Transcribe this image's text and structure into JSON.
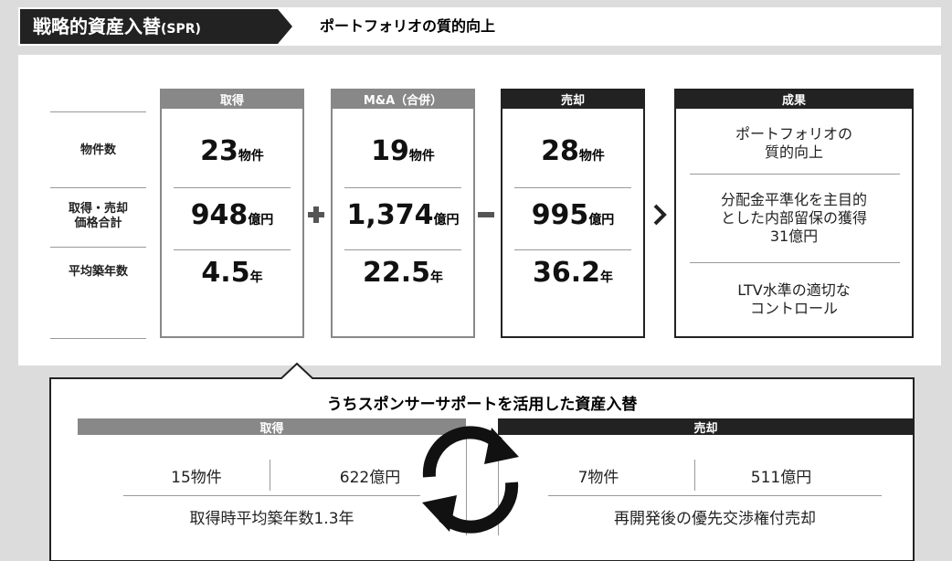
{
  "header": {
    "tag": "戦略的資産入替",
    "tag_sub": "(SPR)",
    "title": "ポートフォリオの質的向上"
  },
  "row_labels": [
    [
      "物件数"
    ],
    [
      "取得・売却",
      "価格合計"
    ],
    [
      "平均築年数"
    ]
  ],
  "columns": [
    {
      "title": "取得",
      "cells": [
        {
          "value": "23",
          "unit": "物件"
        },
        {
          "value": "948",
          "unit": "億円"
        },
        {
          "value": "4.5",
          "unit": "年"
        }
      ]
    },
    {
      "title": "M&A（合併）",
      "cells": [
        {
          "value": "19",
          "unit": "物件"
        },
        {
          "value": "1,374",
          "unit": "億円"
        },
        {
          "value": "22.5",
          "unit": "年"
        }
      ]
    },
    {
      "title": "売却",
      "cells": [
        {
          "value": "28",
          "unit": "物件"
        },
        {
          "value": "995",
          "unit": "億円"
        },
        {
          "value": "36.2",
          "unit": "年"
        }
      ]
    }
  ],
  "results": {
    "title": "成果",
    "items": [
      [
        "ポートフォリオの",
        "質的向上"
      ],
      [
        "分配金平準化を主目的",
        "とした内部留保の獲得",
        "31億円"
      ],
      [
        "LTV水準の適切な",
        "コントロール"
      ]
    ]
  },
  "sponsor": {
    "title": "うちスポンサーサポートを活用した資産入替",
    "acquisition": {
      "title": "取得",
      "count": "15物件",
      "amount": "622億円",
      "note": "取得時平均築年数1.3年"
    },
    "disposition": {
      "title": "売却",
      "count": "7物件",
      "amount": "511億円",
      "note": "再開発後の優先交渉権付売却"
    }
  }
}
